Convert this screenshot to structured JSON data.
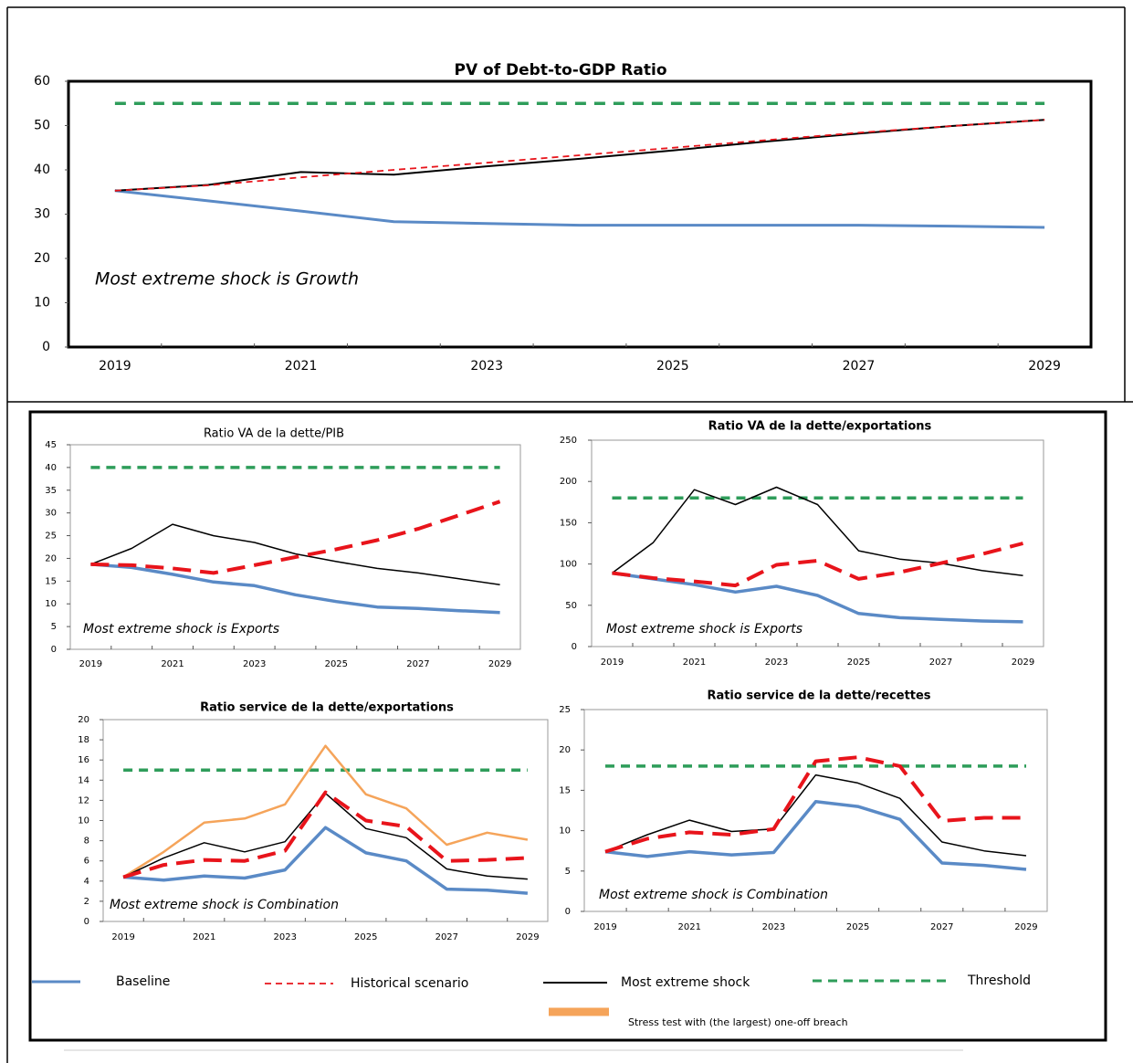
{
  "chart_data": [
    {
      "type": "line",
      "title": "PV of Debt-to-GDP Ratio",
      "categories": [
        2019,
        null,
        2021,
        null,
        2023,
        null,
        2025,
        null,
        2027,
        null,
        2029
      ],
      "ylim": [
        0,
        60
      ],
      "yticks": [
        0,
        10,
        20,
        30,
        40,
        50,
        60
      ],
      "annotation": "Most extreme shock is Growth",
      "series": [
        {
          "name": "Baseline",
          "color": "#5a8ac6",
          "values": [
            35.3,
            33.0,
            30.7,
            28.3,
            27.9,
            27.5,
            27.5,
            27.5,
            27.5,
            27.3,
            27.0
          ]
        },
        {
          "name": "Historical scenario",
          "color": "#e8141b",
          "values": [
            35.3,
            36.5,
            38.3,
            40.0,
            41.6,
            43.3,
            45.0,
            46.7,
            48.4,
            49.9,
            51.3
          ]
        },
        {
          "name": "Most extreme shock",
          "color": "#000000",
          "values": [
            35.3,
            36.6,
            39.5,
            38.9,
            40.8,
            42.5,
            44.4,
            46.4,
            48.2,
            49.9,
            51.3
          ]
        },
        {
          "name": "Threshold",
          "color": "#2e9d5a",
          "values": [
            55,
            55,
            55,
            55,
            55,
            55,
            55,
            55,
            55,
            55,
            55
          ]
        }
      ]
    },
    {
      "type": "line",
      "title": "Ratio VA de la dette/PIB",
      "categories": [
        2019,
        null,
        2021,
        null,
        2023,
        null,
        2025,
        null,
        2027,
        null,
        2029
      ],
      "ylim": [
        0,
        45
      ],
      "yticks": [
        0,
        5,
        10,
        15,
        20,
        25,
        30,
        35,
        40,
        45
      ],
      "annotation": "Most extreme shock is Exports",
      "series": [
        {
          "name": "Baseline",
          "color": "#5a8ac6",
          "values": [
            18.7,
            18.0,
            16.5,
            14.8,
            14.0,
            12.0,
            10.5,
            9.3,
            9.0,
            8.5,
            8.1
          ]
        },
        {
          "name": "Historical scenario",
          "color": "#e8141b",
          "values": [
            18.7,
            18.5,
            17.8,
            16.8,
            18.5,
            20.3,
            22.0,
            24.0,
            26.5,
            29.5,
            32.5
          ]
        },
        {
          "name": "Most extreme shock",
          "color": "#000000",
          "values": [
            18.7,
            22.2,
            27.5,
            25.0,
            23.5,
            21.0,
            19.3,
            17.8,
            16.8,
            15.5,
            14.2
          ]
        },
        {
          "name": "Threshold",
          "color": "#2e9d5a",
          "values": [
            40,
            40,
            40,
            40,
            40,
            40,
            40,
            40,
            40,
            40,
            40
          ]
        }
      ]
    },
    {
      "type": "line",
      "title": "Ratio VA de la dette/exportations",
      "categories": [
        2019,
        null,
        2021,
        null,
        2023,
        null,
        2025,
        null,
        2027,
        null,
        2029
      ],
      "ylim": [
        0,
        250
      ],
      "yticks": [
        0,
        50,
        100,
        150,
        200,
        250
      ],
      "annotation": "Most extreme shock is Exports",
      "series": [
        {
          "name": "Baseline",
          "color": "#5a8ac6",
          "values": [
            89,
            82,
            75,
            66,
            73,
            62,
            40,
            35,
            33,
            31,
            30
          ]
        },
        {
          "name": "Historical scenario",
          "color": "#e8141b",
          "values": [
            89,
            83,
            79,
            74,
            99,
            104,
            82,
            90,
            101,
            112,
            125
          ]
        },
        {
          "name": "Most extreme shock",
          "color": "#000000",
          "values": [
            89,
            126,
            190,
            172,
            193,
            172,
            116,
            106,
            101,
            92,
            86
          ]
        },
        {
          "name": "Threshold",
          "color": "#2e9d5a",
          "values": [
            180,
            180,
            180,
            180,
            180,
            180,
            180,
            180,
            180,
            180,
            180
          ]
        }
      ]
    },
    {
      "type": "line",
      "title": "Ratio service de la dette/exportations",
      "categories": [
        2019,
        null,
        2021,
        null,
        2023,
        null,
        2025,
        null,
        2027,
        null,
        2029
      ],
      "ylim": [
        0,
        20
      ],
      "yticks": [
        0,
        2,
        4,
        6,
        8,
        10,
        12,
        14,
        16,
        18,
        20
      ],
      "annotation": "Most extreme shock is Combination",
      "series": [
        {
          "name": "Baseline",
          "color": "#5a8ac6",
          "values": [
            4.4,
            4.1,
            4.5,
            4.3,
            5.1,
            9.3,
            6.8,
            6.0,
            3.2,
            3.1,
            2.8
          ]
        },
        {
          "name": "Historical scenario",
          "color": "#e8141b",
          "values": [
            4.4,
            5.6,
            6.1,
            6.0,
            7.0,
            12.8,
            10.0,
            9.4,
            6.0,
            6.1,
            6.3
          ]
        },
        {
          "name": "Most extreme shock",
          "color": "#000000",
          "values": [
            4.4,
            6.3,
            7.8,
            6.9,
            7.9,
            12.7,
            9.2,
            8.3,
            5.2,
            4.5,
            4.2
          ]
        },
        {
          "name": "Threshold",
          "color": "#2e9d5a",
          "values": [
            15,
            15,
            15,
            15,
            15,
            15,
            15,
            15,
            15,
            15,
            15
          ]
        },
        {
          "name": "Stress test with (the largest) one-off breach",
          "color": "#f5a45a",
          "values": [
            4.4,
            6.9,
            9.8,
            10.2,
            11.6,
            17.4,
            12.6,
            11.2,
            7.6,
            8.8,
            8.1
          ]
        }
      ]
    },
    {
      "type": "line",
      "title": "Ratio service de la dette/recettes",
      "categories": [
        2019,
        null,
        2021,
        null,
        2023,
        null,
        2025,
        null,
        2027,
        null,
        2029
      ],
      "ylim": [
        0,
        25
      ],
      "yticks": [
        0,
        5,
        10,
        15,
        20,
        25
      ],
      "annotation": "Most extreme shock is Combination",
      "series": [
        {
          "name": "Baseline",
          "color": "#5a8ac6",
          "values": [
            7.4,
            6.8,
            7.4,
            7.0,
            7.3,
            13.6,
            13.0,
            11.4,
            6.0,
            5.7,
            5.2
          ]
        },
        {
          "name": "Historical scenario",
          "color": "#e8141b",
          "values": [
            7.4,
            9.0,
            9.8,
            9.5,
            10.2,
            18.6,
            19.1,
            18.0,
            11.2,
            11.6,
            11.6
          ]
        },
        {
          "name": "Most extreme shock",
          "color": "#000000",
          "values": [
            7.4,
            9.5,
            11.3,
            9.9,
            10.2,
            16.9,
            15.9,
            14.0,
            8.6,
            7.5,
            6.9
          ]
        },
        {
          "name": "Threshold",
          "color": "#2e9d5a",
          "values": [
            18,
            18,
            18,
            18,
            18,
            18,
            18,
            18,
            18,
            18,
            18
          ]
        }
      ]
    }
  ]
}
